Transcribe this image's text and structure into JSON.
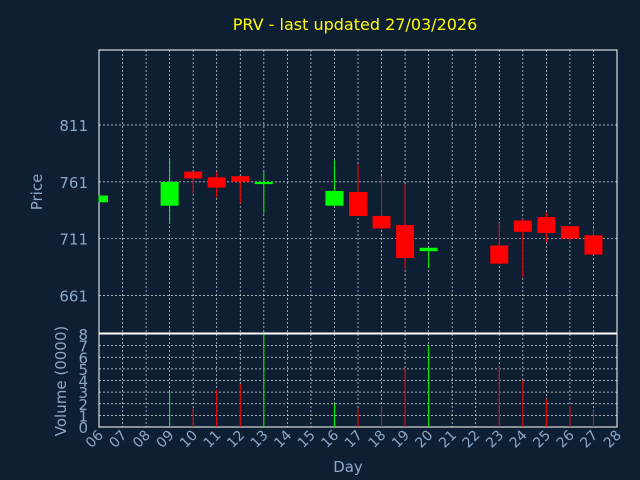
{
  "chart_data": {
    "type": "candlestick",
    "title": "PRV - last updated 27/03/2026",
    "xlabel": "Day",
    "price_ylabel": "Price",
    "volume_ylabel": "Volume (0000)",
    "x_ticks": [
      "06",
      "07",
      "08",
      "09",
      "10",
      "11",
      "12",
      "13",
      "14",
      "15",
      "16",
      "17",
      "18",
      "19",
      "20",
      "21",
      "22",
      "23",
      "24",
      "25",
      "26",
      "27",
      "28"
    ],
    "price_ticks": [
      661,
      711,
      761,
      811
    ],
    "price_ylim": [
      628,
      877
    ],
    "volume_ticks": [
      0,
      1,
      2,
      3,
      4,
      5,
      6,
      7,
      8
    ],
    "volume_ylim": [
      0,
      8
    ],
    "colors": {
      "up": "#00ff00",
      "down": "#ff0000",
      "title": "#ffff00",
      "axis_text": "#8aa8c8",
      "background": "#0f1f33"
    },
    "candles": [
      {
        "day": "06",
        "open": 743,
        "high": 749,
        "low": 743,
        "close": 749,
        "volume": 0
      },
      {
        "day": "09",
        "open": 740,
        "high": 782,
        "low": 724,
        "close": 761,
        "volume": 3.0
      },
      {
        "day": "10",
        "open": 770,
        "high": 770,
        "low": 751,
        "close": 764,
        "volume": 1.6
      },
      {
        "day": "11",
        "open": 765,
        "high": 770,
        "low": 747,
        "close": 756,
        "volume": 3.2
      },
      {
        "day": "12",
        "open": 766,
        "high": 766,
        "low": 742,
        "close": 761,
        "volume": 3.7
      },
      {
        "day": "13",
        "open": 759,
        "high": 770,
        "low": 733,
        "close": 761,
        "volume": 8.0
      },
      {
        "day": "16",
        "open": 740,
        "high": 780,
        "low": 740,
        "close": 753,
        "volume": 2.0
      },
      {
        "day": "17",
        "open": 752,
        "high": 776,
        "low": 731,
        "close": 731,
        "volume": 1.6
      },
      {
        "day": "18",
        "open": 731,
        "high": 766,
        "low": 719,
        "close": 720,
        "volume": 1.8
      },
      {
        "day": "19",
        "open": 723,
        "high": 759,
        "low": 684,
        "close": 694,
        "volume": 5.0
      },
      {
        "day": "20",
        "open": 700,
        "high": 703,
        "low": 685,
        "close": 703,
        "volume": 7.0
      },
      {
        "day": "23",
        "open": 705,
        "high": 725,
        "low": 689,
        "close": 689,
        "volume": 5.2
      },
      {
        "day": "24",
        "open": 727,
        "high": 728,
        "low": 677,
        "close": 717,
        "volume": 4.0
      },
      {
        "day": "25",
        "open": 730,
        "high": 734,
        "low": 708,
        "close": 716,
        "volume": 2.4
      },
      {
        "day": "26",
        "open": 722,
        "high": 722,
        "low": 709,
        "close": 711,
        "volume": 1.8
      },
      {
        "day": "27",
        "open": 714,
        "high": 720,
        "low": 697,
        "close": 697,
        "volume": 1.4
      }
    ]
  }
}
